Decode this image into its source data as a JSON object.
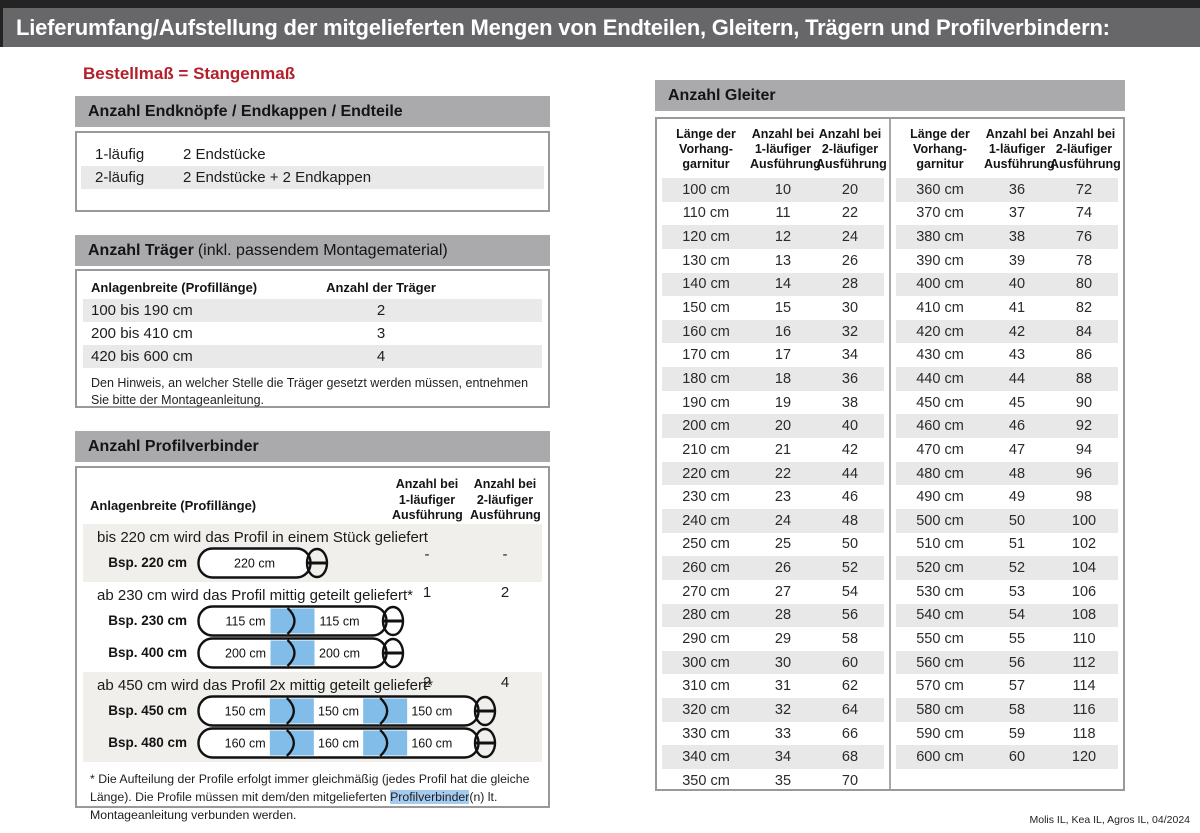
{
  "page": {
    "title": "Lieferumfang/Aufstellung der mitgelieferten Mengen von Endteilen, Gleitern, Trägern und Profilverbindern:",
    "subtitle": "Bestellmaß = Stangenmaß",
    "footer": "Molis IL, Kea IL, Agros IL, 04/2024"
  },
  "colors": {
    "accent_red": "#b3202c",
    "connector_blue": "#82bde9",
    "highlight_blue": "#a5ccf0",
    "titlebar_gray": "#67676a",
    "section_bar_gray": "#aaaaac"
  },
  "endteile": {
    "title": "Anzahl Endknöpfe / Endkappen / Endteile",
    "rows": [
      {
        "label": "1-läufig",
        "value": "2 Endstücke"
      },
      {
        "label": "2-läufig",
        "value": "2 Endstücke + 2 Endkappen"
      }
    ]
  },
  "traeger": {
    "title_bold": "Anzahl Träger",
    "title_rest": "(inkl. passendem Montagematerial)",
    "col1": "Anlagenbreite (Profillänge)",
    "col2": "Anzahl der Träger",
    "rows": [
      {
        "range": "100 bis 190 cm",
        "count": "2"
      },
      {
        "range": "200 bis 410 cm",
        "count": "3"
      },
      {
        "range": "420 bis 600 cm",
        "count": "4"
      }
    ],
    "note": "Den Hinweis, an welcher Stelle die Träger gesetzt werden müssen, entnehmen Sie bitte der Montageanleitung."
  },
  "profilverbinder": {
    "title": "Anzahl Profilverbinder",
    "col1": "Anlagenbreite (Profillänge)",
    "col2_lines": [
      "Anzahl bei",
      "1-läufiger",
      "Ausführung"
    ],
    "col3_lines": [
      "Anzahl bei",
      "2-läufiger",
      "Ausführung"
    ],
    "rows": [
      {
        "text": "bis 220 cm wird das Profil in einem Stück geliefert",
        "v1": "-",
        "v2": "-",
        "examples": [
          {
            "label": "Bsp. 220 cm",
            "segments": [
              "220 cm"
            ]
          }
        ]
      },
      {
        "text": "ab 230 cm wird das Profil mittig geteilt geliefert*",
        "v1": "1",
        "v2": "2",
        "examples": [
          {
            "label": "Bsp. 230 cm",
            "segments": [
              "115 cm",
              "115 cm"
            ]
          },
          {
            "label": "Bsp. 400 cm",
            "segments": [
              "200 cm",
              "200 cm"
            ]
          }
        ]
      },
      {
        "text": "ab 450 cm wird das Profil 2x mittig geteilt geliefert*",
        "v1": "2",
        "v2": "4",
        "examples": [
          {
            "label": "Bsp. 450 cm",
            "segments": [
              "150 cm",
              "150 cm",
              "150 cm"
            ]
          },
          {
            "label": "Bsp. 480 cm",
            "segments": [
              "160 cm",
              "160 cm",
              "160 cm"
            ]
          }
        ]
      }
    ],
    "footnote_pre": "* Die Aufteilung der Profile erfolgt immer gleichmäßig (jedes Profil hat die gleiche Länge). Die Profile müssen mit dem/den mitgelieferten ",
    "footnote_highlight": "Profilverbinder",
    "footnote_post": "(n) lt. Montageanleitung verbunden werden."
  },
  "gleiter": {
    "title": "Anzahl Gleiter",
    "col_headers": [
      [
        "Länge der",
        "Vorhang-",
        "garnitur"
      ],
      [
        "Anzahl bei",
        "1-läufiger",
        "Ausführung"
      ],
      [
        "Anzahl bei",
        "2-läufiger",
        "Ausführung"
      ]
    ],
    "table_left": [
      [
        "100 cm",
        "10",
        "20"
      ],
      [
        "110 cm",
        "11",
        "22"
      ],
      [
        "120 cm",
        "12",
        "24"
      ],
      [
        "130 cm",
        "13",
        "26"
      ],
      [
        "140 cm",
        "14",
        "28"
      ],
      [
        "150 cm",
        "15",
        "30"
      ],
      [
        "160 cm",
        "16",
        "32"
      ],
      [
        "170 cm",
        "17",
        "34"
      ],
      [
        "180 cm",
        "18",
        "36"
      ],
      [
        "190 cm",
        "19",
        "38"
      ],
      [
        "200 cm",
        "20",
        "40"
      ],
      [
        "210 cm",
        "21",
        "42"
      ],
      [
        "220 cm",
        "22",
        "44"
      ],
      [
        "230 cm",
        "23",
        "46"
      ],
      [
        "240 cm",
        "24",
        "48"
      ],
      [
        "250 cm",
        "25",
        "50"
      ],
      [
        "260 cm",
        "26",
        "52"
      ],
      [
        "270 cm",
        "27",
        "54"
      ],
      [
        "280 cm",
        "28",
        "56"
      ],
      [
        "290 cm",
        "29",
        "58"
      ],
      [
        "300 cm",
        "30",
        "60"
      ],
      [
        "310 cm",
        "31",
        "62"
      ],
      [
        "320 cm",
        "32",
        "64"
      ],
      [
        "330 cm",
        "33",
        "66"
      ],
      [
        "340 cm",
        "34",
        "68"
      ],
      [
        "350 cm",
        "35",
        "70"
      ]
    ],
    "table_right": [
      [
        "360 cm",
        "36",
        "72"
      ],
      [
        "370 cm",
        "37",
        "74"
      ],
      [
        "380 cm",
        "38",
        "76"
      ],
      [
        "390 cm",
        "39",
        "78"
      ],
      [
        "400 cm",
        "40",
        "80"
      ],
      [
        "410 cm",
        "41",
        "82"
      ],
      [
        "420 cm",
        "42",
        "84"
      ],
      [
        "430 cm",
        "43",
        "86"
      ],
      [
        "440 cm",
        "44",
        "88"
      ],
      [
        "450 cm",
        "45",
        "90"
      ],
      [
        "460 cm",
        "46",
        "92"
      ],
      [
        "470 cm",
        "47",
        "94"
      ],
      [
        "480 cm",
        "48",
        "96"
      ],
      [
        "490 cm",
        "49",
        "98"
      ],
      [
        "500 cm",
        "50",
        "100"
      ],
      [
        "510 cm",
        "51",
        "102"
      ],
      [
        "520 cm",
        "52",
        "104"
      ],
      [
        "530 cm",
        "53",
        "106"
      ],
      [
        "540 cm",
        "54",
        "108"
      ],
      [
        "550 cm",
        "55",
        "110"
      ],
      [
        "560 cm",
        "56",
        "112"
      ],
      [
        "570 cm",
        "57",
        "114"
      ],
      [
        "580 cm",
        "58",
        "116"
      ],
      [
        "590 cm",
        "59",
        "118"
      ],
      [
        "600 cm",
        "60",
        "120"
      ]
    ]
  }
}
